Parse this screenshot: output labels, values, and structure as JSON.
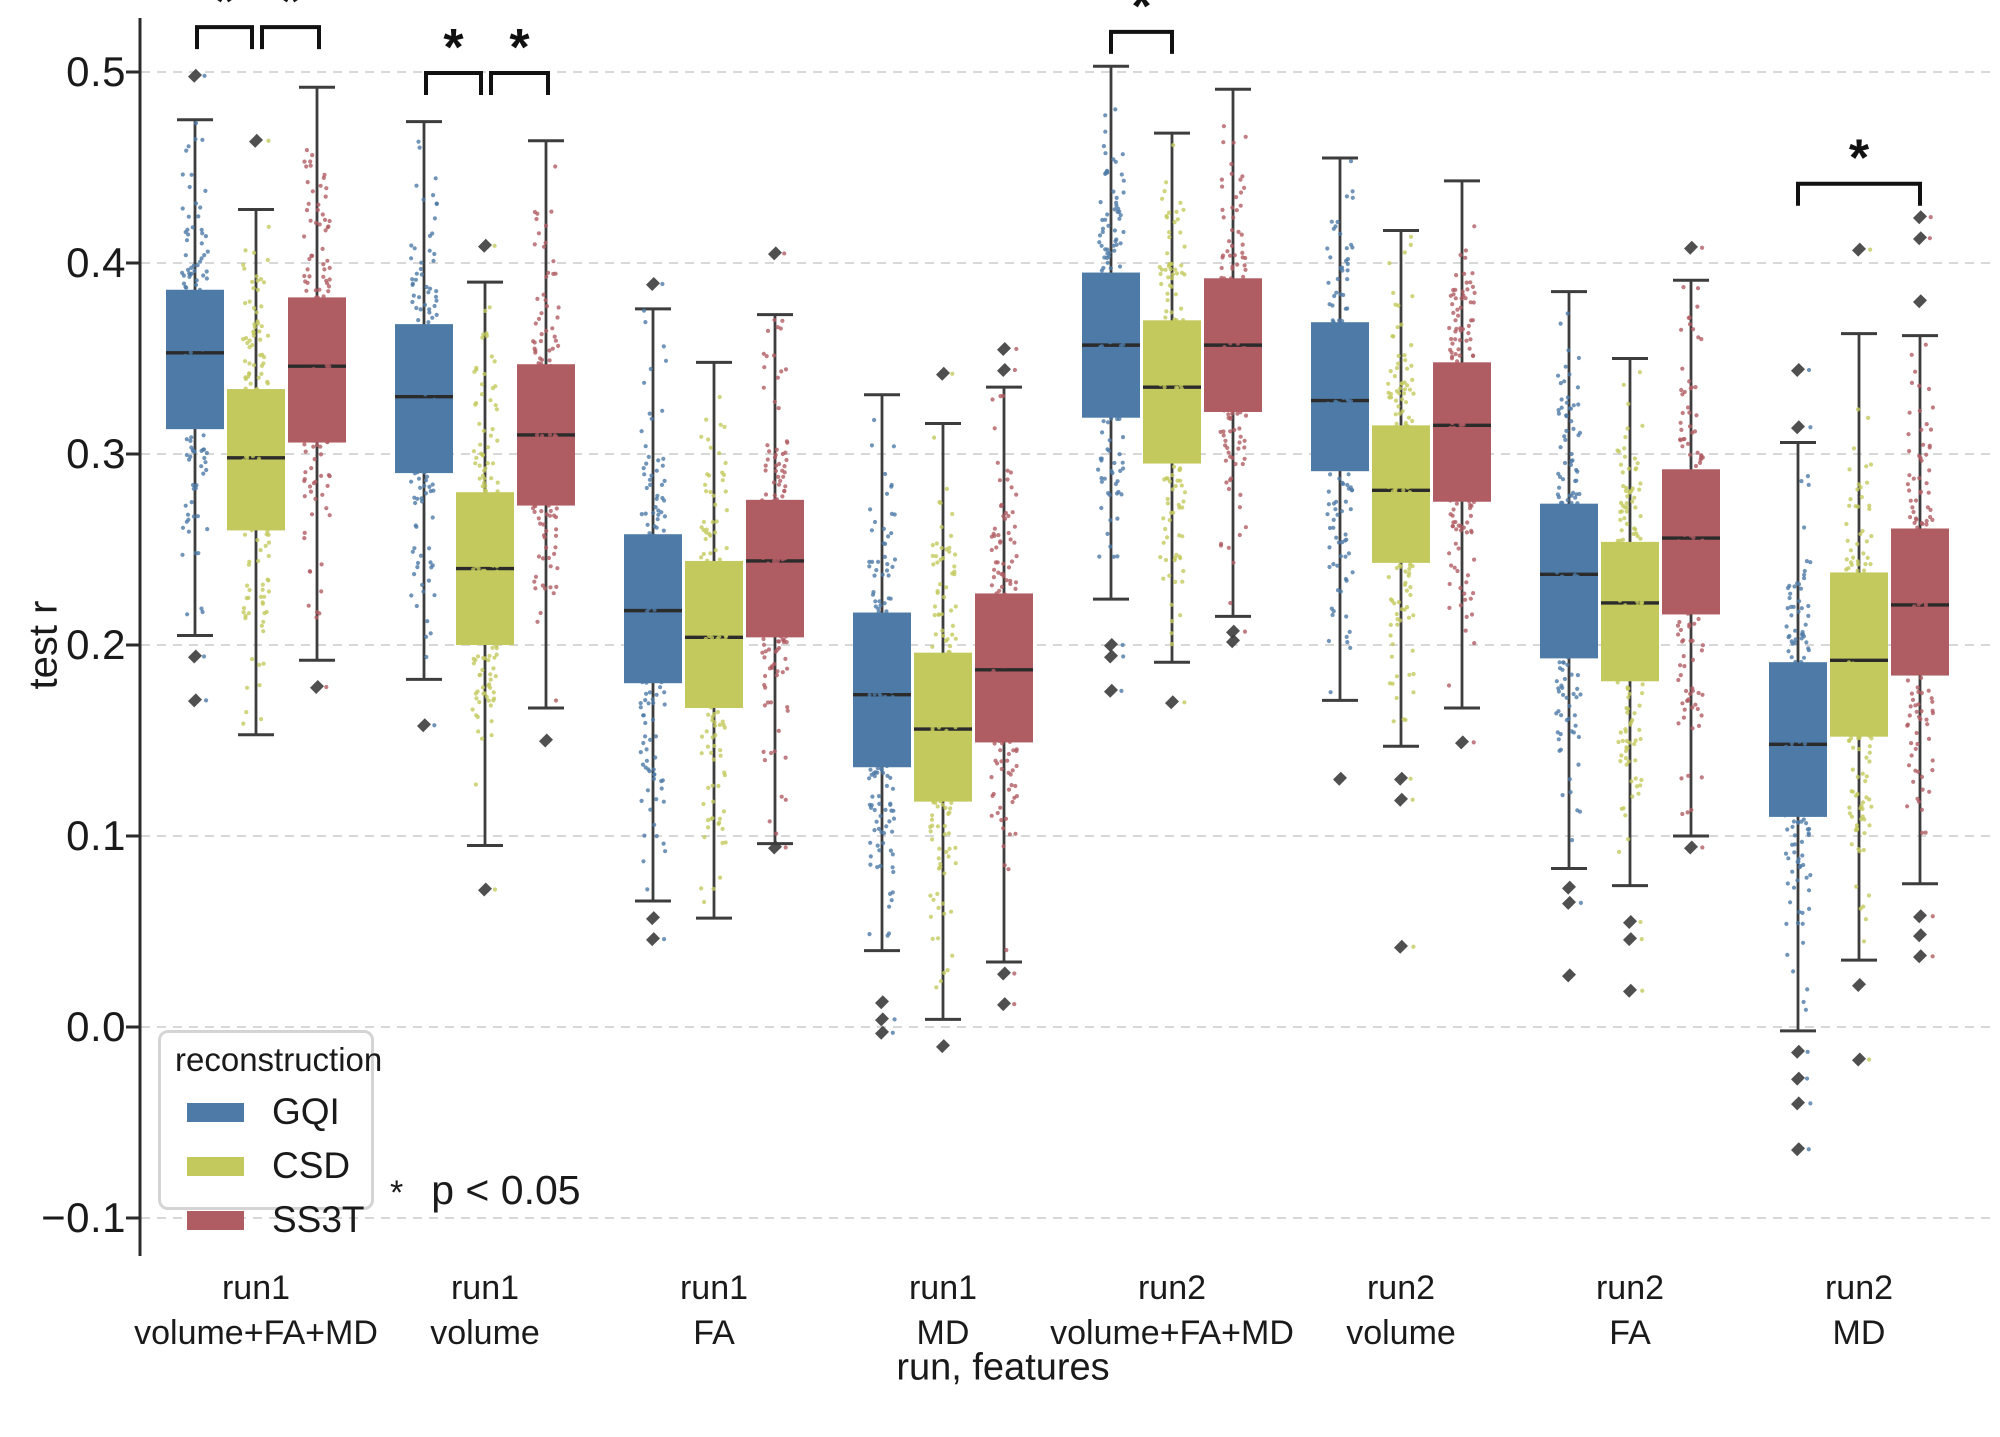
{
  "axes": {
    "ylabel": "test r",
    "xlabel": "run, features",
    "yticks": [
      {
        "value": 0.5,
        "label": "0.5"
      },
      {
        "value": 0.4,
        "label": "0.4"
      },
      {
        "value": 0.3,
        "label": "0.3"
      },
      {
        "value": 0.2,
        "label": "0.2"
      },
      {
        "value": 0.1,
        "label": "0.1"
      },
      {
        "value": 0.0,
        "label": "0.0"
      },
      {
        "value": -0.1,
        "label": "−0.1"
      }
    ]
  },
  "legend": {
    "title": "reconstruction",
    "entries": [
      {
        "label": "GQI",
        "color": "#4d7aa7"
      },
      {
        "label": "CSD",
        "color": "#c3c95c"
      },
      {
        "label": "SS3T",
        "color": "#b05c63"
      }
    ]
  },
  "annotation": {
    "marker": "*",
    "label": "p < 0.05"
  },
  "chart_data": {
    "type": "boxplot-grouped",
    "title": "",
    "xlabel": "run, features",
    "ylabel": "test r",
    "ylim": [
      -0.13,
      0.53
    ],
    "grid": "horizontal-dashed",
    "legend_position": "lower-left-inside",
    "series": [
      "GQI",
      "CSD",
      "SS3T"
    ],
    "series_colors": {
      "GQI": "#4d7aa7",
      "CSD": "#c3c95c",
      "SS3T": "#b05c63"
    },
    "outlier_color": "#3c3c3c",
    "sig_marker": "*",
    "groups": [
      {
        "label_line1": "run1",
        "label_line2": "volume+FA+MD",
        "boxes": [
          {
            "series": "GQI",
            "whislo": 0.205,
            "q1": 0.313,
            "med": 0.353,
            "q3": 0.386,
            "whishi": 0.475,
            "outliers": [
              0.498,
              0.194,
              0.171
            ]
          },
          {
            "series": "CSD",
            "whislo": 0.153,
            "q1": 0.26,
            "med": 0.298,
            "q3": 0.334,
            "whishi": 0.428,
            "outliers": [
              0.464
            ]
          },
          {
            "series": "SS3T",
            "whislo": 0.192,
            "q1": 0.306,
            "med": 0.346,
            "q3": 0.382,
            "whishi": 0.492,
            "outliers": [
              0.178
            ]
          }
        ]
      },
      {
        "label_line1": "run1",
        "label_line2": "volume",
        "boxes": [
          {
            "series": "GQI",
            "whislo": 0.182,
            "q1": 0.29,
            "med": 0.33,
            "q3": 0.368,
            "whishi": 0.474,
            "outliers": [
              0.158
            ]
          },
          {
            "series": "CSD",
            "whislo": 0.095,
            "q1": 0.2,
            "med": 0.24,
            "q3": 0.28,
            "whishi": 0.39,
            "outliers": [
              0.409,
              0.072
            ]
          },
          {
            "series": "SS3T",
            "whislo": 0.167,
            "q1": 0.273,
            "med": 0.31,
            "q3": 0.347,
            "whishi": 0.464,
            "outliers": [
              0.15
            ]
          }
        ]
      },
      {
        "label_line1": "run1",
        "label_line2": "FA",
        "boxes": [
          {
            "series": "GQI",
            "whislo": 0.066,
            "q1": 0.18,
            "med": 0.218,
            "q3": 0.258,
            "whishi": 0.376,
            "outliers": [
              0.389,
              0.057,
              0.046
            ]
          },
          {
            "series": "CSD",
            "whislo": 0.057,
            "q1": 0.167,
            "med": 0.204,
            "q3": 0.244,
            "whishi": 0.348,
            "outliers": []
          },
          {
            "series": "SS3T",
            "whislo": 0.096,
            "q1": 0.204,
            "med": 0.244,
            "q3": 0.276,
            "whishi": 0.373,
            "outliers": [
              0.405,
              0.094
            ]
          }
        ]
      },
      {
        "label_line1": "run1",
        "label_line2": "MD",
        "boxes": [
          {
            "series": "GQI",
            "whislo": 0.04,
            "q1": 0.136,
            "med": 0.174,
            "q3": 0.217,
            "whishi": 0.331,
            "outliers": [
              0.013,
              0.004,
              -0.003
            ]
          },
          {
            "series": "CSD",
            "whislo": 0.004,
            "q1": 0.118,
            "med": 0.156,
            "q3": 0.196,
            "whishi": 0.316,
            "outliers": [
              0.342,
              -0.01
            ]
          },
          {
            "series": "SS3T",
            "whislo": 0.034,
            "q1": 0.149,
            "med": 0.187,
            "q3": 0.227,
            "whishi": 0.335,
            "outliers": [
              0.355,
              0.344,
              0.028,
              0.012
            ]
          }
        ]
      },
      {
        "label_line1": "run2",
        "label_line2": "volume+FA+MD",
        "boxes": [
          {
            "series": "GQI",
            "whislo": 0.224,
            "q1": 0.319,
            "med": 0.357,
            "q3": 0.395,
            "whishi": 0.503,
            "outliers": [
              0.2,
              0.194,
              0.176
            ]
          },
          {
            "series": "CSD",
            "whislo": 0.191,
            "q1": 0.295,
            "med": 0.335,
            "q3": 0.37,
            "whishi": 0.468,
            "outliers": [
              0.17
            ]
          },
          {
            "series": "SS3T",
            "whislo": 0.215,
            "q1": 0.322,
            "med": 0.357,
            "q3": 0.392,
            "whishi": 0.491,
            "outliers": [
              0.207,
              0.202
            ]
          }
        ]
      },
      {
        "label_line1": "run2",
        "label_line2": "volume",
        "boxes": [
          {
            "series": "GQI",
            "whislo": 0.171,
            "q1": 0.291,
            "med": 0.328,
            "q3": 0.369,
            "whishi": 0.455,
            "outliers": [
              0.13
            ]
          },
          {
            "series": "CSD",
            "whislo": 0.147,
            "q1": 0.243,
            "med": 0.281,
            "q3": 0.315,
            "whishi": 0.417,
            "outliers": [
              0.13,
              0.119,
              0.042
            ]
          },
          {
            "series": "SS3T",
            "whislo": 0.167,
            "q1": 0.275,
            "med": 0.315,
            "q3": 0.348,
            "whishi": 0.443,
            "outliers": [
              0.149
            ]
          }
        ]
      },
      {
        "label_line1": "run2",
        "label_line2": "FA",
        "boxes": [
          {
            "series": "GQI",
            "whislo": 0.083,
            "q1": 0.193,
            "med": 0.237,
            "q3": 0.274,
            "whishi": 0.385,
            "outliers": [
              0.073,
              0.065,
              0.027
            ]
          },
          {
            "series": "CSD",
            "whislo": 0.074,
            "q1": 0.181,
            "med": 0.222,
            "q3": 0.254,
            "whishi": 0.35,
            "outliers": [
              0.055,
              0.046,
              0.019
            ]
          },
          {
            "series": "SS3T",
            "whislo": 0.1,
            "q1": 0.216,
            "med": 0.256,
            "q3": 0.292,
            "whishi": 0.391,
            "outliers": [
              0.408,
              0.094
            ]
          }
        ]
      },
      {
        "label_line1": "run2",
        "label_line2": "MD",
        "boxes": [
          {
            "series": "GQI",
            "whislo": -0.002,
            "q1": 0.11,
            "med": 0.148,
            "q3": 0.191,
            "whishi": 0.306,
            "outliers": [
              0.344,
              0.314,
              -0.013,
              -0.027,
              -0.04,
              -0.064
            ]
          },
          {
            "series": "CSD",
            "whislo": 0.035,
            "q1": 0.152,
            "med": 0.192,
            "q3": 0.238,
            "whishi": 0.363,
            "outliers": [
              0.407,
              0.022,
              -0.017
            ]
          },
          {
            "series": "SS3T",
            "whislo": 0.075,
            "q1": 0.184,
            "med": 0.221,
            "q3": 0.261,
            "whishi": 0.362,
            "outliers": [
              0.424,
              0.413,
              0.38,
              0.058,
              0.048,
              0.037
            ]
          }
        ]
      }
    ],
    "significance_brackets": [
      {
        "group": 0,
        "a": 0,
        "b": 1,
        "y": 0.5235,
        "dx1": 2,
        "dx2": -4
      },
      {
        "group": 0,
        "a": 1,
        "b": 2,
        "y": 0.5235,
        "dx1": 6,
        "dx2": 2
      },
      {
        "group": 1,
        "a": 0,
        "b": 1,
        "y": 0.4995,
        "dx1": 2,
        "dx2": -4
      },
      {
        "group": 1,
        "a": 1,
        "b": 2,
        "y": 0.4995,
        "dx1": 6,
        "dx2": 2
      },
      {
        "group": 4,
        "a": 0,
        "b": 1,
        "y": 0.521,
        "dx1": 0,
        "dx2": 0
      },
      {
        "group": 7,
        "a": 0,
        "b": 2,
        "y": 0.4415,
        "dx1": 0,
        "dx2": 0
      }
    ]
  }
}
